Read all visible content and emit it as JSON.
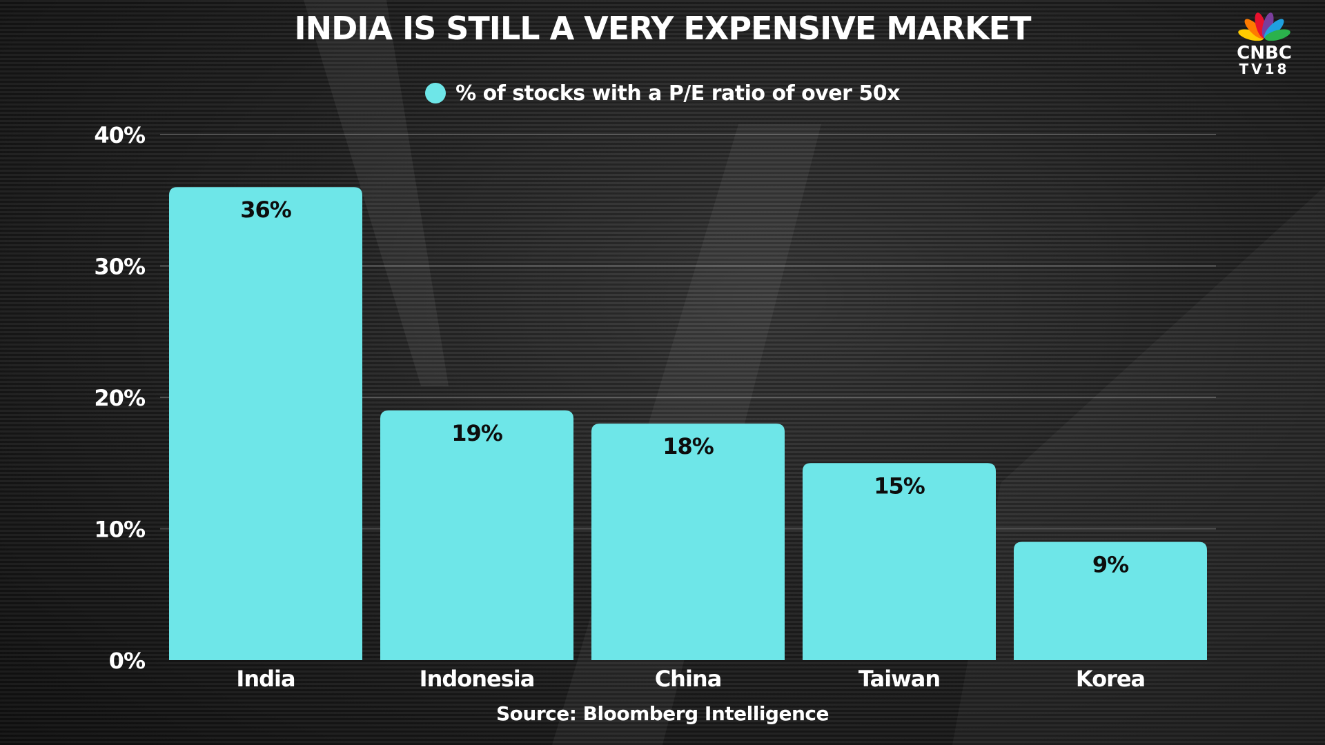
{
  "header": {
    "title": "INDIA IS STILL A VERY EXPENSIVE MARKET"
  },
  "brand": {
    "name_line1": "CNBC",
    "name_line2": "TV18",
    "icon": "peacock-logo-icon"
  },
  "footer": {
    "source": "Source: Bloomberg Intelligence"
  },
  "colors": {
    "bar": "#6ee6e8",
    "text": "#ffffff",
    "bar_label": "#0d0d0d",
    "peacock": [
      "#ffcc00",
      "#ff7a00",
      "#e8112d",
      "#7a3e9d",
      "#1fa0e0",
      "#2bb24c"
    ]
  },
  "chart_data": {
    "type": "bar",
    "title": "INDIA IS STILL A VERY EXPENSIVE MARKET",
    "categories": [
      "India",
      "Indonesia",
      "China",
      "Taiwan",
      "Korea"
    ],
    "series": [
      {
        "name": "% of stocks with a P/E ratio of over 50x",
        "values": [
          36,
          19,
          18,
          15,
          9
        ],
        "labels": [
          "36%",
          "19%",
          "18%",
          "15%",
          "9%"
        ]
      }
    ],
    "ylim": [
      0,
      40
    ],
    "yticks": [
      0,
      10,
      20,
      30,
      40
    ],
    "ytick_labels": [
      "0%",
      "10%",
      "20%",
      "30%",
      "40%"
    ],
    "xlabel": "",
    "ylabel": "",
    "grid": true,
    "legend_position": "top-center"
  }
}
